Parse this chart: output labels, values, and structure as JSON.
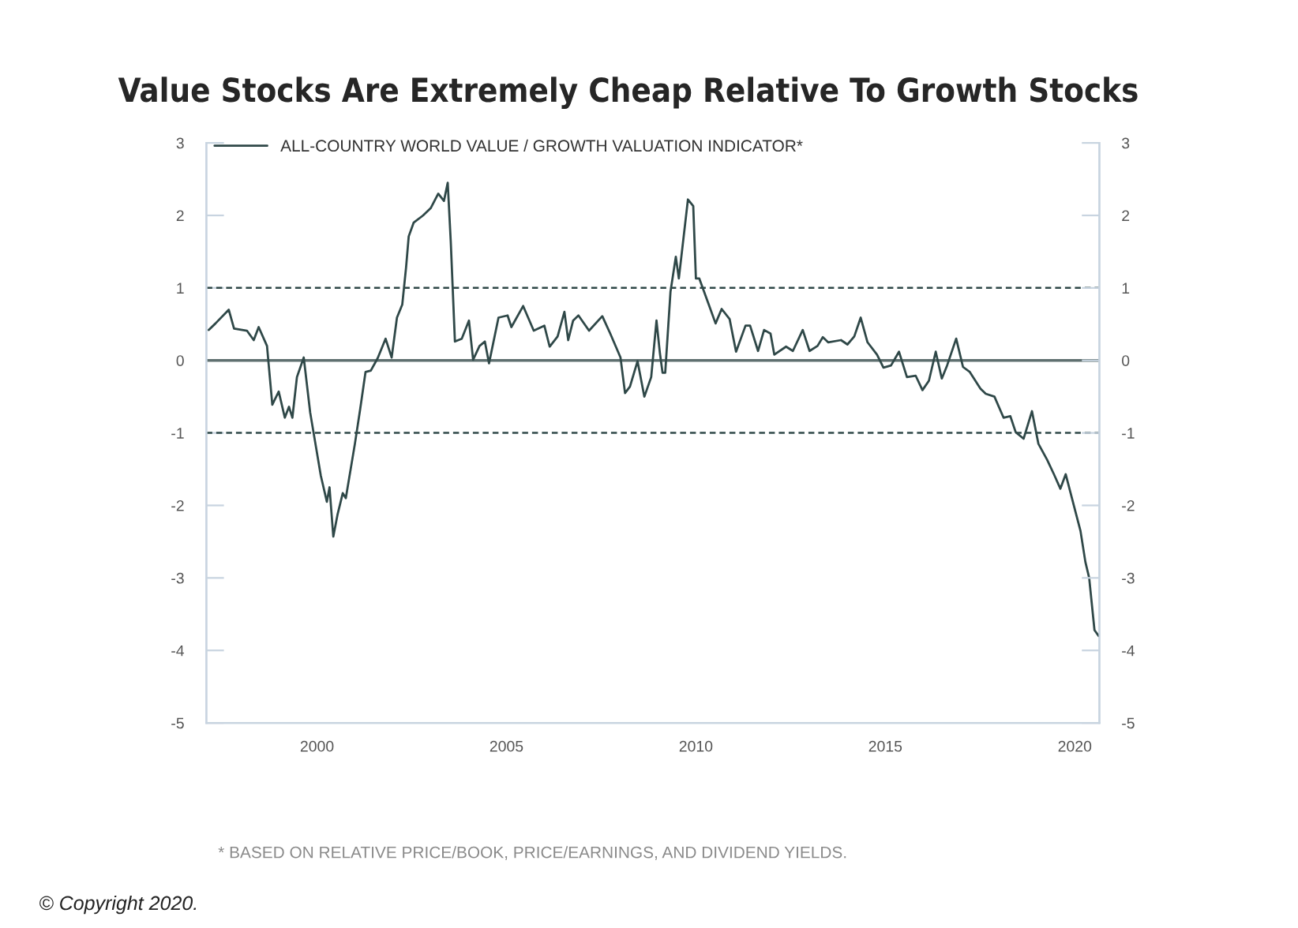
{
  "chart_data": {
    "type": "line",
    "title": "Value Stocks Are Extremely Cheap Relative To Growth Stocks",
    "annotations": [
      "* BASED ON RELATIVE PRICE/BOOK, PRICE/EARNINGS, AND DIVIDEND YIELDS.",
      "© Copyright 2020."
    ],
    "series": [
      {
        "name": "ALL-COUNTRY WORLD VALUE / GROWTH VALUATION INDICATOR*",
        "color": "#2f4848",
        "x": [
          1997.14,
          1997.32,
          1997.67,
          1997.81,
          1998.15,
          1998.33,
          1998.46,
          1998.68,
          1998.82,
          1998.99,
          1999.15,
          1999.26,
          1999.35,
          1999.47,
          1999.65,
          1999.82,
          2000.1,
          2000.26,
          2000.33,
          2000.43,
          2000.54,
          2000.68,
          2000.76,
          2001.0,
          2001.14,
          2001.28,
          2001.42,
          2001.6,
          2001.81,
          2001.97,
          2002.11,
          2002.25,
          2002.35,
          2002.42,
          2002.55,
          2002.8,
          2003.0,
          2003.2,
          2003.35,
          2003.45,
          2003.53,
          2003.64,
          2003.82,
          2004.01,
          2004.12,
          2004.29,
          2004.43,
          2004.54,
          2004.79,
          2005.03,
          2005.13,
          2005.44,
          2005.72,
          2006.0,
          2006.14,
          2006.35,
          2006.53,
          2006.63,
          2006.76,
          2006.9,
          2007.18,
          2007.53,
          2007.74,
          2008.01,
          2008.13,
          2008.26,
          2008.46,
          2008.64,
          2008.82,
          2008.96,
          2009.05,
          2009.12,
          2009.19,
          2009.33,
          2009.47,
          2009.55,
          2009.79,
          2009.93,
          2010.0,
          2010.09,
          2010.34,
          2010.52,
          2010.68,
          2010.89,
          2011.06,
          2011.31,
          2011.43,
          2011.64,
          2011.8,
          2011.97,
          2012.07,
          2012.38,
          2012.56,
          2012.82,
          2013.0,
          2013.21,
          2013.35,
          2013.49,
          2013.83,
          2014.0,
          2014.18,
          2014.35,
          2014.53,
          2014.78,
          2014.95,
          2015.15,
          2015.36,
          2015.57,
          2015.8,
          2015.98,
          2016.15,
          2016.33,
          2016.49,
          2016.63,
          2016.87,
          2017.05,
          2017.23,
          2017.51,
          2017.65,
          2017.88,
          2018.12,
          2018.3,
          2018.44,
          2018.65,
          2018.87,
          2019.04,
          2019.27,
          2019.45,
          2019.62,
          2019.76,
          2019.97,
          2020.15,
          2020.28,
          2020.38,
          2020.52,
          2020.63
        ],
        "values": [
          0.42,
          0.51,
          0.7,
          0.44,
          0.41,
          0.28,
          0.46,
          0.2,
          -0.61,
          -0.43,
          -0.79,
          -0.64,
          -0.79,
          -0.23,
          0.04,
          -0.72,
          -1.59,
          -1.95,
          -1.75,
          -2.43,
          -2.13,
          -1.83,
          -1.9,
          -1.15,
          -0.67,
          -0.16,
          -0.14,
          0.03,
          0.3,
          0.04,
          0.59,
          0.77,
          1.28,
          1.71,
          1.9,
          2.0,
          2.1,
          2.3,
          2.2,
          2.45,
          1.64,
          0.26,
          0.3,
          0.55,
          0.01,
          0.2,
          0.26,
          -0.04,
          0.59,
          0.62,
          0.46,
          0.75,
          0.41,
          0.48,
          0.19,
          0.33,
          0.67,
          0.28,
          0.55,
          0.62,
          0.41,
          0.61,
          0.37,
          0.04,
          -0.45,
          -0.36,
          -0.01,
          -0.5,
          -0.23,
          0.55,
          0.1,
          -0.17,
          -0.17,
          0.95,
          1.43,
          1.13,
          2.22,
          2.13,
          1.13,
          1.13,
          0.77,
          0.51,
          0.71,
          0.57,
          0.12,
          0.48,
          0.48,
          0.13,
          0.42,
          0.37,
          0.08,
          0.19,
          0.13,
          0.42,
          0.13,
          0.2,
          0.32,
          0.25,
          0.28,
          0.22,
          0.33,
          0.59,
          0.25,
          0.08,
          -0.1,
          -0.07,
          0.12,
          -0.23,
          -0.21,
          -0.41,
          -0.28,
          0.12,
          -0.25,
          -0.07,
          0.3,
          -0.09,
          -0.16,
          -0.39,
          -0.46,
          -0.5,
          -0.79,
          -0.77,
          -0.99,
          -1.08,
          -0.7,
          -1.15,
          -1.37,
          -1.57,
          -1.77,
          -1.57,
          -1.99,
          -2.35,
          -2.78,
          -3.0,
          -3.72,
          -3.8
        ]
      }
    ],
    "xlim": [
      1997.08,
      2020.65
    ],
    "xticks": [
      2000,
      2005,
      2010,
      2015,
      2020
    ],
    "ylim": [
      -5,
      3
    ],
    "yticks": [
      -5,
      -4,
      -3,
      -2,
      -1,
      0,
      1,
      2,
      3
    ],
    "y2lim": [
      -5,
      3
    ],
    "y2ticks": [
      -5,
      -4,
      -3,
      -2,
      -1,
      0,
      1,
      2,
      3
    ],
    "ref_lines": [
      {
        "axis": "y",
        "value": 1,
        "color": "#2f4848",
        "line_style": "dashed"
      },
      {
        "axis": "y",
        "value": 0,
        "color": "#5f7070",
        "line_style": "solid"
      },
      {
        "axis": "y",
        "value": -1,
        "color": "#2f4848",
        "line_style": "dashed"
      }
    ],
    "grid": false,
    "legend": "top left",
    "line_style": "solid",
    "marker": "none"
  }
}
